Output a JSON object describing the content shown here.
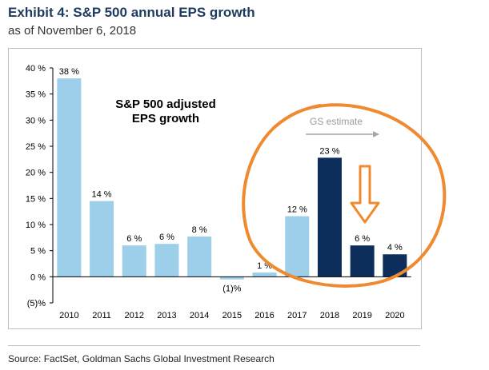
{
  "header": {
    "title": "Exhibit 4: S&P 500 annual EPS growth",
    "subtitle": "as of November 6, 2018"
  },
  "footer": {
    "source": "Source: FactSet, Goldman Sachs Global Investment Research"
  },
  "colors": {
    "actual": "#9dcfea",
    "estimate": "#0d2d5a",
    "overlay": "#f08a30",
    "axis": "#000000",
    "estimate_arrow": "#a6a6a6"
  },
  "chart_data": {
    "type": "bar",
    "title": "S&P 500 adjusted EPS growth",
    "xlabel": "",
    "ylabel": "",
    "ylim": [
      -5,
      40
    ],
    "yticks": [
      40,
      35,
      30,
      25,
      20,
      15,
      10,
      5,
      0,
      -5
    ],
    "ytick_labels": [
      "40 %",
      "35 %",
      "30 %",
      "25 %",
      "20 %",
      "15 %",
      "10 %",
      "5 %",
      "0 %",
      "(5)%"
    ],
    "categories": [
      "2010",
      "2011",
      "2012",
      "2013",
      "2014",
      "2015",
      "2016",
      "2017",
      "2018",
      "2019",
      "2020"
    ],
    "values": [
      38,
      14.5,
      6,
      6.3,
      7.7,
      -0.5,
      0.8,
      11.6,
      22.8,
      6,
      4.3
    ],
    "data_labels": [
      "38 %",
      "14 %",
      "6 %",
      "6 %",
      "8 %",
      "(1)%",
      "1 %",
      "12 %",
      "23 %",
      "6 %",
      "4 %"
    ],
    "estimate_from": "2018",
    "estimate_label": "GS estimate",
    "annotation_line1": "S&P 500 adjusted",
    "annotation_line2": "EPS growth"
  }
}
